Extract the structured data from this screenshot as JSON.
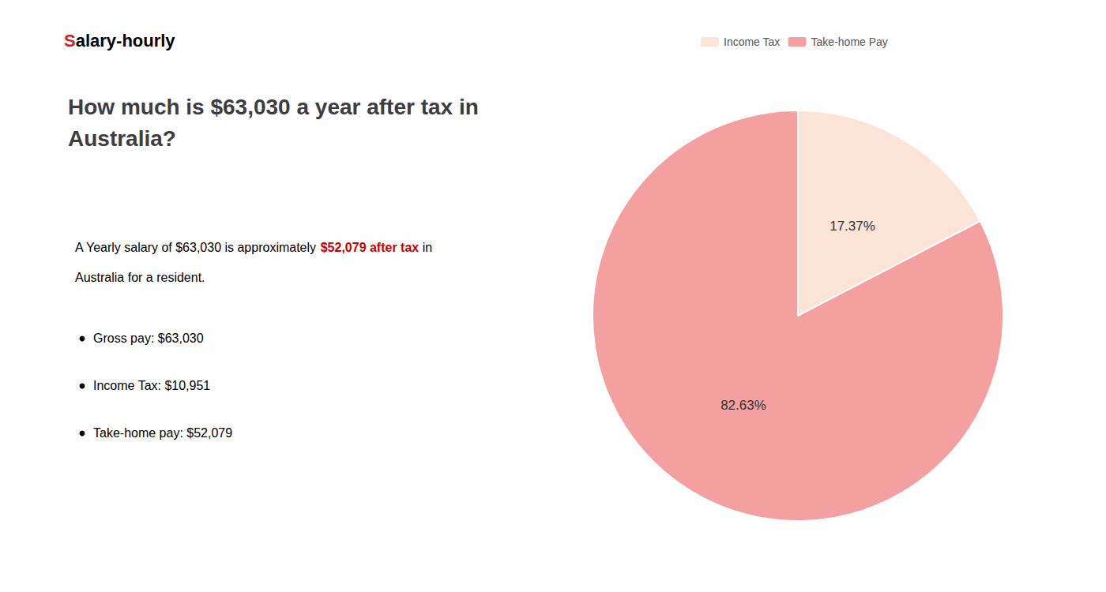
{
  "chart_data": {
    "type": "pie",
    "title": "How much is $63,030 a year after tax in\nAustralia?",
    "categories": [
      "Income Tax",
      "Take-home Pay"
    ],
    "values": [
      17.37,
      82.63
    ],
    "value_labels": [
      "17.37%",
      "82.63%"
    ],
    "colors": [
      "#fce4d6",
      "#f4a0a0"
    ],
    "data_labels": true,
    "legend": "top",
    "annotations": {
      "logo": [
        {
          "text": "S",
          "color": "#cc2222"
        },
        {
          "text": "alary-hourly"
        }
      ],
      "summary": [
        [
          {
            "text": "A Yearly salary of $63,030 is approximately "
          },
          {
            "text": "$52,079 after tax",
            "color": "#cc0000"
          },
          {
            "text": " in"
          }
        ],
        [
          {
            "text": "Australia for a resident."
          }
        ]
      ],
      "bullets": [
        "Gross pay: $63,030",
        "Income Tax: $10,951",
        "Take-home pay: $52,079"
      ]
    }
  }
}
